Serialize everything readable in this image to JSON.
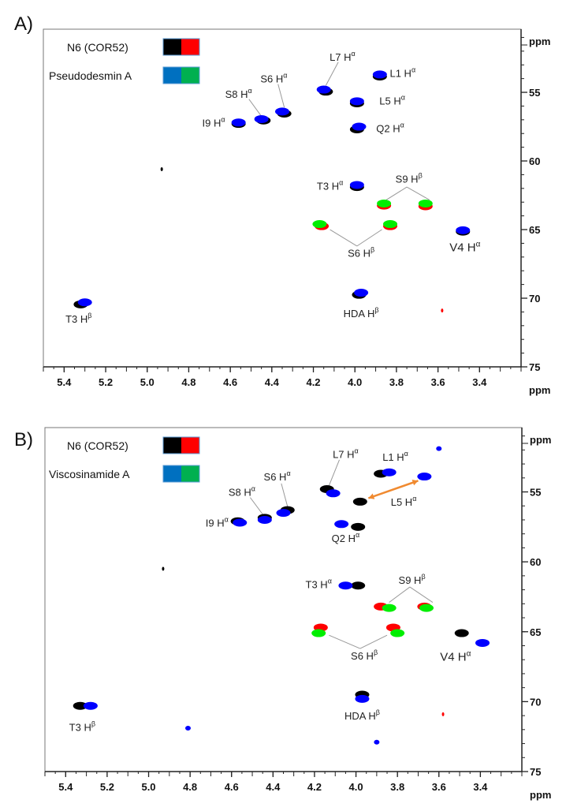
{
  "chart_data": [
    {
      "type": "scatter",
      "panel_label": "A)",
      "title": "",
      "xlabel": "ppm",
      "ylabel": "ppm",
      "xlim": [
        5.5,
        3.2
      ],
      "ylim": [
        50.4,
        75
      ],
      "x_ticks": [
        5.4,
        5.2,
        5.0,
        4.8,
        4.6,
        4.4,
        4.2,
        4.0,
        3.8,
        3.6,
        3.4
      ],
      "y_ticks": [
        55,
        60,
        65,
        70,
        75
      ],
      "legend": {
        "placement": "top-left",
        "entries": [
          {
            "label": "N6 (COR52)",
            "colors": [
              "#000000",
              "#ff0000"
            ]
          },
          {
            "label": "Pseudodesmin A",
            "colors": [
              "#0070c0",
              "#00b050"
            ]
          }
        ]
      },
      "series": [
        {
          "name": "N6 (COR52) CH",
          "color": "#000000",
          "points": [
            [
              3.88,
              53.85
            ],
            [
              4.14,
              54.95
            ],
            [
              3.99,
              55.8
            ],
            [
              3.99,
              57.7
            ],
            [
              4.34,
              56.55
            ],
            [
              4.44,
              57.05
            ],
            [
              4.56,
              57.3
            ],
            [
              3.99,
              61.9
            ],
            [
              3.48,
              65.15
            ],
            [
              3.98,
              69.75
            ],
            [
              5.32,
              70.45
            ],
            [
              4.93,
              60.6
            ]
          ]
        },
        {
          "name": "N6 (COR52) CH2",
          "color": "#ff0000",
          "points": [
            [
              3.86,
              63.25
            ],
            [
              3.66,
              63.3
            ],
            [
              4.16,
              64.75
            ],
            [
              3.83,
              64.75
            ],
            [
              3.58,
              70.9
            ]
          ]
        },
        {
          "name": "Pseudodesmin A CH",
          "color": "#0000ff",
          "points": [
            [
              3.88,
              53.7
            ],
            [
              4.15,
              54.8
            ],
            [
              3.99,
              55.65
            ],
            [
              3.98,
              57.5
            ],
            [
              4.35,
              56.4
            ],
            [
              4.45,
              56.95
            ],
            [
              4.56,
              57.2
            ],
            [
              3.99,
              61.75
            ],
            [
              3.48,
              65.05
            ],
            [
              3.97,
              69.6
            ],
            [
              5.3,
              70.3
            ]
          ]
        },
        {
          "name": "Pseudodesmin A CH2",
          "color": "#00ee00",
          "points": [
            [
              3.86,
              63.1
            ],
            [
              3.66,
              63.1
            ],
            [
              4.17,
              64.6
            ],
            [
              3.83,
              64.6
            ]
          ]
        }
      ],
      "annotations": [
        {
          "text": "L7 H",
          "sup": "α",
          "x": 4.06,
          "y": 52.4
        },
        {
          "text": "L1 H",
          "sup": "α",
          "x": 3.77,
          "y": 53.6
        },
        {
          "text": "S6 H",
          "sup": "α",
          "x": 4.39,
          "y": 54.0
        },
        {
          "text": "S8 H",
          "sup": "α",
          "x": 4.56,
          "y": 55.1
        },
        {
          "text": "I9 H",
          "sup": "α",
          "x": 4.68,
          "y": 57.2
        },
        {
          "text": "L5 H",
          "sup": "α",
          "x": 3.82,
          "y": 55.6
        },
        {
          "text": "Q2 H",
          "sup": "α",
          "x": 3.83,
          "y": 57.6
        },
        {
          "text": "T3 H",
          "sup": "α",
          "x": 4.12,
          "y": 61.8
        },
        {
          "text": "S9 H",
          "sup": "β",
          "x": 3.74,
          "y": 61.3
        },
        {
          "text": "S6 H",
          "sup": "β",
          "x": 3.97,
          "y": 66.7
        },
        {
          "text": "V4 H",
          "sup": "α",
          "x": 3.47,
          "y": 66.3,
          "big": true
        },
        {
          "text": "HDA H",
          "sup": "β",
          "x": 3.97,
          "y": 71.1
        },
        {
          "text": "T3 H",
          "sup": "β",
          "x": 5.33,
          "y": 71.5
        }
      ],
      "leader_lines": [
        [
          [
            4.08,
            52.8
          ],
          [
            4.14,
            54.5
          ]
        ],
        [
          [
            4.37,
            54.4
          ],
          [
            4.34,
            56.1
          ]
        ],
        [
          [
            4.51,
            55.5
          ],
          [
            4.45,
            56.75
          ]
        ],
        [
          [
            3.75,
            61.9
          ],
          [
            3.85,
            62.85
          ]
        ],
        [
          [
            3.75,
            61.9
          ],
          [
            3.64,
            62.85
          ]
        ],
        [
          [
            3.99,
            66.2
          ],
          [
            4.12,
            65.0
          ]
        ],
        [
          [
            3.99,
            66.2
          ],
          [
            3.87,
            65.0
          ]
        ]
      ],
      "arrows": []
    },
    {
      "type": "scatter",
      "panel_label": "B)",
      "title": "",
      "xlabel": "ppm",
      "ylabel": "ppm",
      "xlim": [
        5.5,
        3.2
      ],
      "ylim": [
        50.4,
        75
      ],
      "x_ticks": [
        5.4,
        5.2,
        5.0,
        4.8,
        4.6,
        4.4,
        4.2,
        4.0,
        3.8,
        3.6,
        3.4
      ],
      "y_ticks": [
        55,
        60,
        65,
        70,
        75
      ],
      "legend": {
        "placement": "top-left",
        "entries": [
          {
            "label": "N6 (COR52)",
            "colors": [
              "#000000",
              "#ff0000"
            ]
          },
          {
            "label": "Viscosinamide A",
            "colors": [
              "#0070c0",
              "#00b050"
            ]
          }
        ]
      },
      "series": [
        {
          "name": "N6 (COR52) CH",
          "color": "#000000",
          "points": [
            [
              3.88,
              53.7
            ],
            [
              4.14,
              54.8
            ],
            [
              3.98,
              55.7
            ],
            [
              3.99,
              57.5
            ],
            [
              4.33,
              56.3
            ],
            [
              4.44,
              56.85
            ],
            [
              4.57,
              57.1
            ],
            [
              3.99,
              61.7
            ],
            [
              3.49,
              65.1
            ],
            [
              3.97,
              69.5
            ],
            [
              5.33,
              70.3
            ],
            [
              4.93,
              60.5
            ]
          ]
        },
        {
          "name": "N6 (COR52) CH2",
          "color": "#ff0000",
          "points": [
            [
              3.88,
              63.2
            ],
            [
              3.67,
              63.2
            ],
            [
              4.17,
              64.7
            ],
            [
              3.82,
              64.7
            ],
            [
              3.58,
              70.9
            ]
          ]
        },
        {
          "name": "Viscosinamide A CH",
          "color": "#0000ff",
          "points": [
            [
              3.84,
              53.6
            ],
            [
              3.67,
              53.9
            ],
            [
              4.11,
              55.1
            ],
            [
              4.35,
              56.5
            ],
            [
              4.44,
              57.0
            ],
            [
              4.56,
              57.2
            ],
            [
              4.07,
              57.3
            ],
            [
              4.05,
              61.7
            ],
            [
              3.39,
              65.8
            ],
            [
              3.97,
              69.8
            ],
            [
              5.28,
              70.3
            ],
            [
              3.6,
              51.9
            ],
            [
              4.81,
              71.9
            ],
            [
              3.9,
              72.9
            ]
          ]
        },
        {
          "name": "Viscosinamide A CH2",
          "color": "#00ee00",
          "points": [
            [
              3.84,
              63.3
            ],
            [
              3.66,
              63.3
            ],
            [
              4.18,
              65.1
            ],
            [
              3.8,
              65.1
            ]
          ]
        }
      ],
      "annotations": [
        {
          "text": "L7 H",
          "sup": "α",
          "x": 4.05,
          "y": 52.3
        },
        {
          "text": "L1 H",
          "sup": "α",
          "x": 3.81,
          "y": 52.5
        },
        {
          "text": "S6 H",
          "sup": "α",
          "x": 4.38,
          "y": 53.9
        },
        {
          "text": "S8 H",
          "sup": "α",
          "x": 4.55,
          "y": 55.0
        },
        {
          "text": "I9 H",
          "sup": "α",
          "x": 4.67,
          "y": 57.2
        },
        {
          "text": "L5 H",
          "sup": "α",
          "x": 3.77,
          "y": 55.7
        },
        {
          "text": "Q2 H",
          "sup": "α",
          "x": 4.05,
          "y": 58.3
        },
        {
          "text": "T3 H",
          "sup": "α",
          "x": 4.18,
          "y": 61.6
        },
        {
          "text": "S9 H",
          "sup": "β",
          "x": 3.73,
          "y": 61.3
        },
        {
          "text": "S6 H",
          "sup": "β",
          "x": 3.96,
          "y": 66.7
        },
        {
          "text": "V4 H",
          "sup": "α",
          "x": 3.52,
          "y": 66.8,
          "big": true
        },
        {
          "text": "HDA H",
          "sup": "β",
          "x": 3.97,
          "y": 71.0
        },
        {
          "text": "T3 H",
          "sup": "β",
          "x": 5.32,
          "y": 71.8
        }
      ],
      "leader_lines": [
        [
          [
            4.08,
            52.7
          ],
          [
            4.13,
            54.55
          ]
        ],
        [
          [
            4.36,
            54.4
          ],
          [
            4.33,
            56.05
          ]
        ],
        [
          [
            4.51,
            55.4
          ],
          [
            4.45,
            56.6
          ]
        ],
        [
          [
            3.74,
            61.8
          ],
          [
            3.84,
            62.9
          ]
        ],
        [
          [
            3.74,
            61.8
          ],
          [
            3.63,
            62.9
          ]
        ],
        [
          [
            3.98,
            66.2
          ],
          [
            4.13,
            65.25
          ]
        ],
        [
          [
            3.98,
            66.2
          ],
          [
            3.85,
            65.25
          ]
        ]
      ],
      "arrows": [
        {
          "from": [
            3.94,
            55.45
          ],
          "to": [
            3.7,
            54.2
          ],
          "color": "#f08a30",
          "double": true
        }
      ]
    }
  ]
}
